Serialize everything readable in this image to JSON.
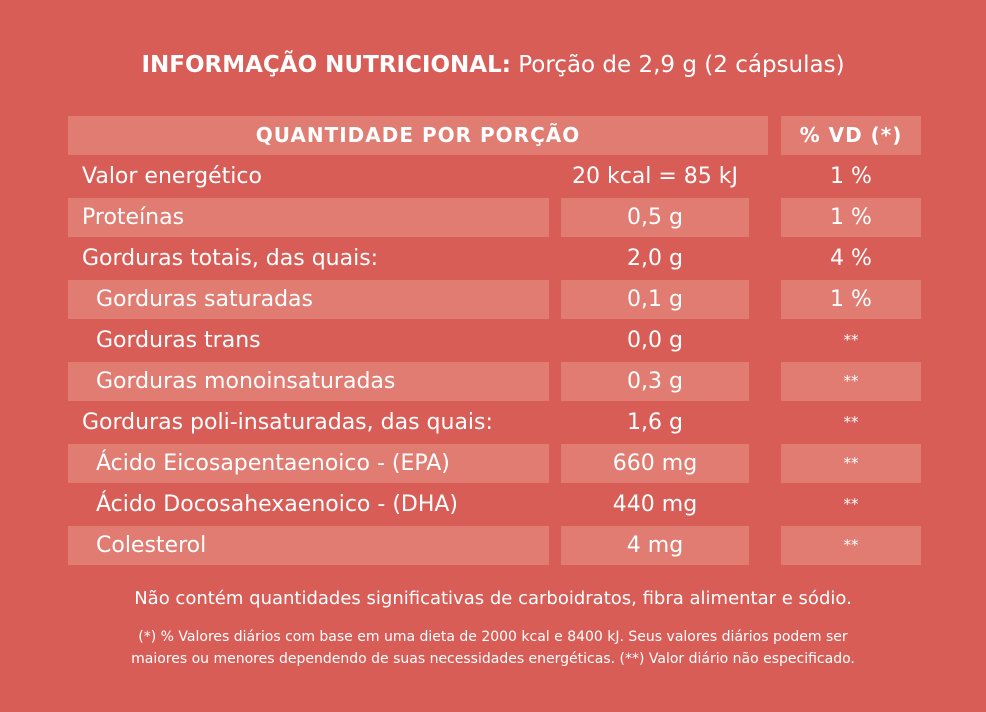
{
  "title": {
    "bold": "INFORMAÇÃO NUTRICIONAL:",
    "rest": "Porção de 2,9 g (2 cápsulas)"
  },
  "table": {
    "header_quantity": "QUANTIDADE POR PORÇÃO",
    "header_vd": "% VD (*)",
    "rows": [
      {
        "label": "Valor energético",
        "amount": "20 kcal = 85 kJ",
        "vd": "1 %"
      },
      {
        "label": "Proteínas",
        "amount": "0,5 g",
        "vd": "1 %"
      },
      {
        "label": "Gorduras totais, das quais:",
        "amount": "2,0 g",
        "vd": "4 %"
      },
      {
        "label": "Gorduras saturadas",
        "amount": "0,1 g",
        "vd": "1 %"
      },
      {
        "label": "Gorduras trans",
        "amount": "0,0 g",
        "vd": "**"
      },
      {
        "label": "Gorduras monoinsaturadas",
        "amount": "0,3 g",
        "vd": "**"
      },
      {
        "label": "Gorduras poli-insaturadas, das quais:",
        "amount": "1,6 g",
        "vd": "**"
      },
      {
        "label": "Ácido Eicosapentaenoico - (EPA)",
        "amount": "660 mg",
        "vd": "**"
      },
      {
        "label": "Ácido Docosahexaenoico - (DHA)",
        "amount": "440 mg",
        "vd": "**"
      },
      {
        "label": "Colesterol",
        "amount": "4 mg",
        "vd": "**"
      }
    ]
  },
  "notes": {
    "not_significant": "Não contém quantidades significativas de carboidratos, fibra alimentar e sódio.",
    "footnote_line1": "(*) % Valores diários com base em uma dieta de 2000 kcal e 8400 kJ. Seus valores diários podem ser",
    "footnote_line2": "maiores ou menores dependendo de suas necessidades energéticas. (**) Valor diário não especificado."
  },
  "colors": {
    "background": "#d95d57",
    "shaded": "#e07c72",
    "text": "#ffffff"
  }
}
